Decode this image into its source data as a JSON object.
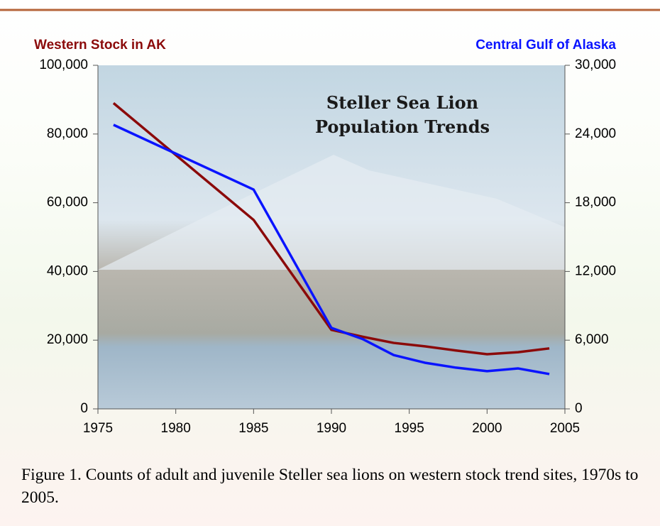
{
  "chart_data": {
    "type": "line",
    "title": "Steller Sea Lion Population Trends",
    "caption": "Figure 1.  Counts of adult and juvenile Steller sea lions on western stock trend sites, 1970s to 2005.",
    "x": [
      1976,
      1985,
      1990,
      1992,
      1994,
      1996,
      1998,
      2000,
      2002,
      2004
    ],
    "series": [
      {
        "name": "Western Stock in AK",
        "color": "#8b0a0a",
        "axis": "y",
        "values": [
          89000,
          55000,
          23000,
          21000,
          19200,
          18200,
          17000,
          15900,
          16500,
          17600
        ]
      },
      {
        "name": "Central Gulf of Alaska",
        "color": "#0a14ff",
        "axis": "y2",
        "values": [
          24800,
          19150,
          7070,
          6100,
          4700,
          4030,
          3600,
          3290,
          3530,
          3040
        ]
      }
    ],
    "xlim": [
      1975,
      2005
    ],
    "xticks": [
      1975,
      1980,
      1985,
      1990,
      1995,
      2000,
      2005
    ],
    "ylim": [
      0,
      100000
    ],
    "yticks": [
      0,
      {
        "value": 20000,
        "label": "20,000"
      },
      {
        "value": 40000,
        "label": "40,000"
      },
      {
        "value": 60000,
        "label": "60,000"
      },
      {
        "value": 80000,
        "label": "80,000"
      },
      {
        "value": 100000,
        "label": "100,000"
      }
    ],
    "y2lim": [
      0,
      30000
    ],
    "y2ticks": [
      0,
      {
        "value": 6000,
        "label": "6,000"
      },
      {
        "value": 12000,
        "label": "12,000"
      },
      {
        "value": 18000,
        "label": "18,000"
      },
      {
        "value": 24000,
        "label": "24,000"
      },
      {
        "value": 30000,
        "label": "30,000"
      }
    ]
  }
}
